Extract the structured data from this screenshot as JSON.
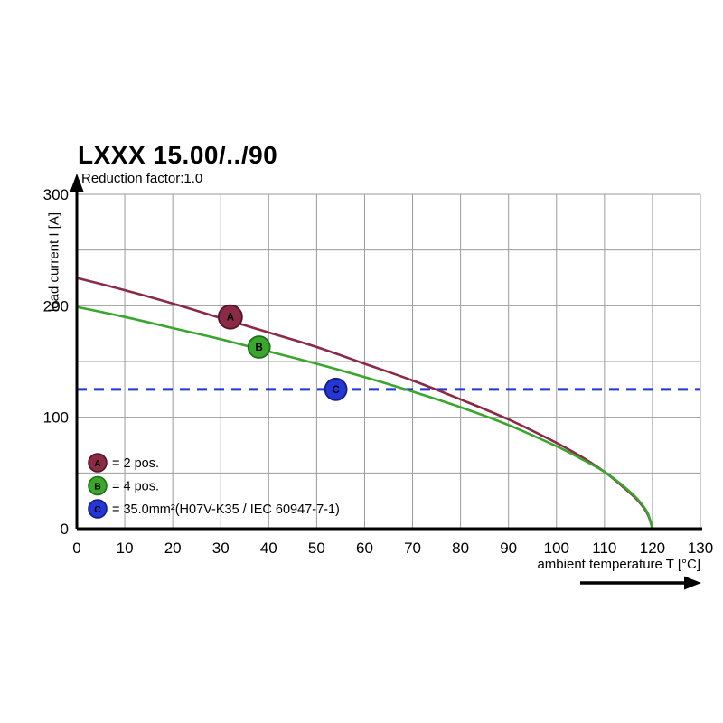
{
  "title": "LXXX 15.00/../90",
  "subtitle": "Reduction factor:1.0",
  "chart_data": {
    "type": "line",
    "title": "LXXX 15.00/../90",
    "subtitle": "Reduction factor:1.0",
    "xlabel": "ambient temperature T [°C]",
    "ylabel": "load current I [A]",
    "xlim": [
      0,
      130
    ],
    "ylim": [
      0,
      300
    ],
    "x_ticks": [
      0,
      10,
      20,
      30,
      40,
      50,
      60,
      70,
      80,
      90,
      100,
      110,
      120,
      130
    ],
    "y_ticks": [
      0,
      100,
      200,
      300
    ],
    "x_grid_step": 10,
    "y_grid_step": 50,
    "grid": true,
    "grid_color": "#9b9b9b",
    "axis_color": "#000000",
    "legend_position": "lower-left",
    "series": [
      {
        "name": "A",
        "legend": "= 2 pos.",
        "color": "#8b2a45",
        "edge": "#53152a",
        "points": [
          [
            0,
            225
          ],
          [
            10,
            214
          ],
          [
            20,
            202
          ],
          [
            30,
            189
          ],
          [
            40,
            176
          ],
          [
            50,
            163
          ],
          [
            60,
            148
          ],
          [
            70,
            133
          ],
          [
            80,
            116
          ],
          [
            90,
            98
          ],
          [
            100,
            77
          ],
          [
            105,
            65
          ],
          [
            110,
            51
          ],
          [
            114,
            37
          ],
          [
            117,
            25
          ],
          [
            119,
            13
          ],
          [
            120,
            0
          ]
        ],
        "marker": {
          "T": 32,
          "I": 190,
          "r": 13,
          "label": "A"
        }
      },
      {
        "name": "B",
        "legend": "= 4 pos.",
        "color": "#3aa62e",
        "edge": "#1e7016",
        "points": [
          [
            0,
            199
          ],
          [
            10,
            190
          ],
          [
            20,
            180
          ],
          [
            30,
            170
          ],
          [
            40,
            159
          ],
          [
            50,
            148
          ],
          [
            60,
            136
          ],
          [
            70,
            123
          ],
          [
            80,
            109
          ],
          [
            90,
            93
          ],
          [
            100,
            74
          ],
          [
            105,
            63
          ],
          [
            110,
            51
          ],
          [
            114,
            38
          ],
          [
            117,
            26
          ],
          [
            119,
            14
          ],
          [
            120,
            0
          ]
        ],
        "marker": {
          "T": 38,
          "I": 163,
          "r": 12,
          "label": "B"
        }
      }
    ],
    "reference_line": {
      "name": "C",
      "legend": "= 35.0mm²(H07V-K35 / IEC 60947-7-1)",
      "color": "#2536d6",
      "edge": "#141d7d",
      "value": 125,
      "style": "dashed",
      "marker": {
        "T": 54,
        "I": 125,
        "r": 12,
        "label": "C"
      }
    }
  }
}
